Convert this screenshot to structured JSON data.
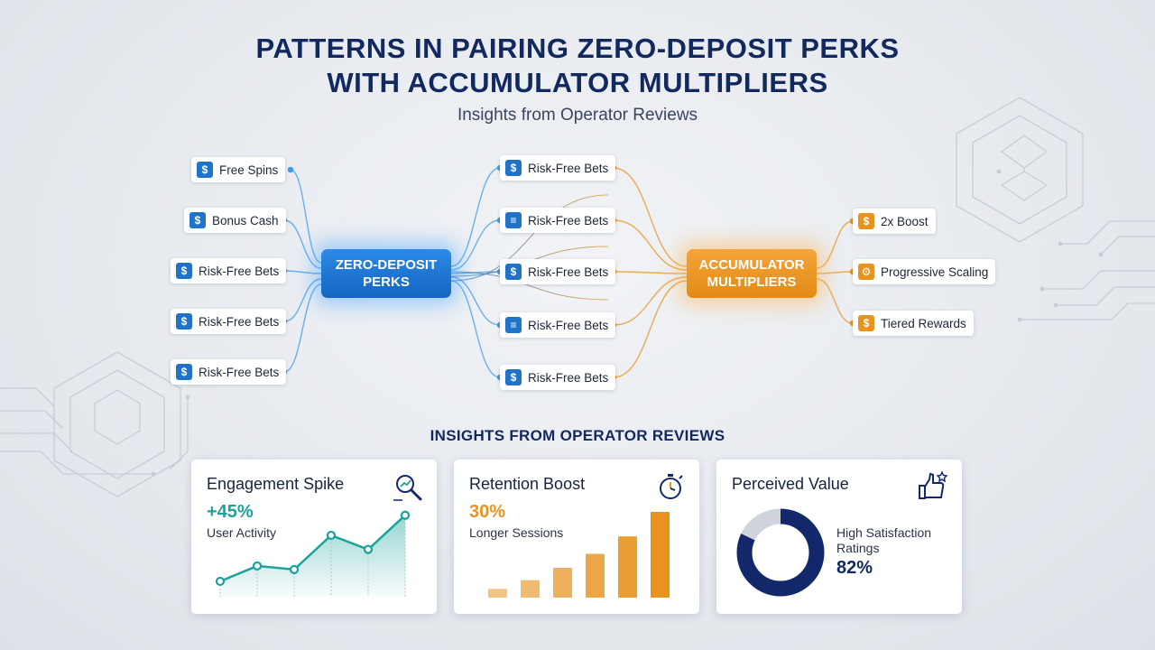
{
  "header": {
    "title_line1": "PATTERNS IN PAIRING ZERO-DEPOSIT PERKS",
    "title_line2": "WITH ACCUMULATOR MULTIPLIERS",
    "subtitle": "Insights from Operator Reviews"
  },
  "diagram": {
    "left_hub": {
      "line1": "ZERO-DEPOSIT",
      "line2": "PERKS",
      "color": "#1f74c9"
    },
    "right_hub": {
      "line1": "ACCUMULATOR",
      "line2": "MULTIPLIERS",
      "color": "#e8931f"
    },
    "left_items": [
      {
        "label": "Free Spins",
        "icon": "dollar-icon"
      },
      {
        "label": "Bonus Cash",
        "icon": "dollar-icon"
      },
      {
        "label": "Risk-Free Bets",
        "icon": "dollar-icon"
      },
      {
        "label": "Risk-Free Bets",
        "icon": "dollar-icon"
      },
      {
        "label": "Risk-Free Bets",
        "icon": "dollar-icon"
      }
    ],
    "middle_items": [
      {
        "label": "Risk-Free Bets",
        "icon": "dollar-icon"
      },
      {
        "label": "Risk-Free Bets",
        "icon": "list-icon"
      },
      {
        "label": "Risk-Free Bets",
        "icon": "dollar-icon"
      },
      {
        "label": "Risk-Free Bets",
        "icon": "list-icon"
      },
      {
        "label": "Risk-Free Bets",
        "icon": "dollar-icon"
      }
    ],
    "right_items": [
      {
        "label": "2x Boost",
        "icon": "dollar-icon"
      },
      {
        "label": "Progressive Scaling",
        "icon": "gear-icon"
      },
      {
        "label": "Tiered Rewards",
        "icon": "dollar-icon"
      }
    ]
  },
  "insights": {
    "section_title": "INSIGHTS FROM OPERATOR REVIEWS",
    "engagement": {
      "title": "Engagement Spike",
      "metric": "+45%",
      "metric_label": "User Activity",
      "color": "#1aa39a",
      "icon": "magnifier-chart-icon"
    },
    "retention": {
      "title": "Retention Boost",
      "metric": "30%",
      "metric_label": "Longer Sessions",
      "color": "#e8931f",
      "icon": "stopwatch-icon"
    },
    "perceived": {
      "title": "Perceived Value",
      "label": "High Satisfaction Ratings",
      "value": "82%",
      "color": "#13286a",
      "icon": "thumbs-up-star-icon"
    }
  },
  "chart_data": [
    {
      "type": "line",
      "x": [
        1,
        2,
        3,
        4,
        5,
        6
      ],
      "values": [
        1.0,
        2.3,
        2.0,
        4.9,
        3.7,
        6.6
      ],
      "color": "#1aa39a",
      "area": true
    },
    {
      "type": "bar",
      "values": [
        1.0,
        2.0,
        3.4,
        5.0,
        7.0,
        9.8
      ],
      "color": "#e8931f",
      "ylim": [
        0,
        10
      ]
    },
    {
      "type": "pie",
      "style": "donut",
      "slices": [
        {
          "value": 82,
          "color": "#13286a"
        },
        {
          "value": 18,
          "color": "#cfd4dc"
        }
      ]
    }
  ]
}
